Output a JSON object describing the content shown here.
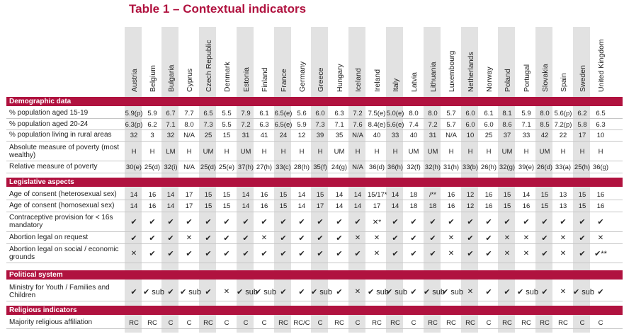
{
  "title": "Table 1 – Contextual indicators",
  "countries": [
    "Austria",
    "Belgium",
    "Bulgaria",
    "Cyprus",
    "Czech Republic",
    "Denmark",
    "Estonia",
    "Finland",
    "France",
    "Germany",
    "Greece",
    "Hungary",
    "Iceland",
    "Ireland",
    "Italy",
    "Latvia",
    "Lithuania",
    "Luxembourg",
    "Netherlands",
    "Norway",
    "Poland",
    "Portugal",
    "Slovakia",
    "Spain",
    "Sweden",
    "United Kingdom"
  ],
  "sections": [
    {
      "title": "Demographic data",
      "rows": [
        {
          "label": "% population aged 15-19",
          "values": [
            "5.9(p)",
            "5.9",
            "6.7",
            "7.7",
            "6.5",
            "5.5",
            "7.9",
            "6.1",
            "6.5(e)",
            "5.6",
            "6.0",
            "6.3",
            "7.2",
            "7.5(e)",
            "5.0(e)",
            "8.0",
            "8.0",
            "5.7",
            "6.0",
            "6.1",
            "8.1",
            "5.9",
            "8.0",
            "5.6(p)",
            "6.2",
            "6.5"
          ]
        },
        {
          "label": "% population aged 20-24",
          "values": [
            "6.3(p)",
            "6.2",
            "7.1",
            "8.0",
            "7.3",
            "5.5",
            "7.2",
            "6.3",
            "6.5(e)",
            "5.9",
            "7.3",
            "7.1",
            "7.6",
            "8.4(e)",
            "5.6(e)",
            "7.4",
            "7.2",
            "5.7",
            "6.0",
            "6.0",
            "8.6",
            "7.1",
            "8.5",
            "7.2(p)",
            "5.8",
            "6.3"
          ]
        },
        {
          "label": "% population living in rural areas",
          "values": [
            "32",
            "3",
            "32",
            "N/A",
            "25",
            "15",
            "31",
            "41",
            "24",
            "12",
            "39",
            "35",
            "N/A",
            "40",
            "33",
            "40",
            "31",
            "N/A",
            "10",
            "25",
            "37",
            "33",
            "42",
            "22",
            "17",
            "10"
          ]
        },
        {
          "label": "Absolute measure of poverty (most wealthy)",
          "values": [
            "H",
            "H",
            "LM",
            "H",
            "UM",
            "H",
            "UM",
            "H",
            "H",
            "H",
            "H",
            "UM",
            "H",
            "H",
            "H",
            "UM",
            "UM",
            "H",
            "H",
            "H",
            "UM",
            "H",
            "UM",
            "H",
            "H",
            "H"
          ]
        },
        {
          "label": "Relative measure of poverty",
          "values": [
            "30(e)",
            "25(d)",
            "32(i)",
            "N/A",
            "25(d)",
            "25(e)",
            "37(h)",
            "27(h)",
            "33(c)",
            "28(h)",
            "35(f)",
            "24(g)",
            "N/A",
            "36(d)",
            "36(h)",
            "32(f)",
            "32(h)",
            "31(h)",
            "33(b)",
            "26(h)",
            "32(g)",
            "39(e)",
            "26(d)",
            "33(a)",
            "25(h)",
            "36(g)"
          ]
        }
      ]
    },
    {
      "title": "Legislative aspects",
      "rows": [
        {
          "label": "Age of consent (heterosexual sex)",
          "values": [
            "14",
            "16",
            "14",
            "17",
            "15",
            "15",
            "14",
            "16",
            "15",
            "14",
            "15",
            "14",
            "14",
            "15/17*",
            "14",
            "18",
            "/**",
            "16",
            "12",
            "16",
            "15",
            "14",
            "15",
            "13",
            "15",
            "16"
          ]
        },
        {
          "label": "Age of consent (homosexual sex)",
          "values": [
            "14",
            "16",
            "14",
            "17",
            "15",
            "15",
            "14",
            "16",
            "15",
            "14",
            "17",
            "14",
            "14",
            "17",
            "14",
            "18",
            "18",
            "16",
            "12",
            "16",
            "15",
            "16",
            "15",
            "13",
            "15",
            "16"
          ]
        },
        {
          "label": "Contraceptive provision for < 16s mandatory",
          "values": [
            "✔",
            "✔",
            "✔",
            "✔",
            "✔",
            "✔",
            "✔",
            "✔",
            "✔",
            "✔",
            "✔",
            "✔",
            "✔",
            "✕*",
            "✔",
            "✔",
            "✔",
            "✔",
            "✔",
            "✔",
            "✔",
            "✔",
            "✔",
            "✔",
            "✔",
            "✔"
          ]
        },
        {
          "label": "Abortion legal on request",
          "values": [
            "✔",
            "✔",
            "✔",
            "✕",
            "✔",
            "✔",
            "✔",
            "✕",
            "✔",
            "✔",
            "✔",
            "✔",
            "✕",
            "✕",
            "✔",
            "✔",
            "✔",
            "✕",
            "✔",
            "✔",
            "✕",
            "✕",
            "✔",
            "✕",
            "✔",
            "✕"
          ]
        },
        {
          "label": "Abortion legal on social / economic grounds",
          "values": [
            "✕",
            "✔",
            "✔",
            "✔",
            "✔",
            "✔",
            "✔",
            "✔",
            "✔",
            "✔",
            "✔",
            "✔",
            "✔",
            "✕",
            "✔",
            "✔",
            "✔",
            "✕",
            "✔",
            "✔",
            "✕",
            "✕",
            "✔",
            "✕",
            "✔",
            "✔**"
          ]
        }
      ]
    },
    {
      "title": "Political system",
      "rows": [
        {
          "label": "Ministry for Youth / Families and Children",
          "values": [
            "✔",
            "✔ sub",
            "✔",
            "✔ sub",
            "✔",
            "✕",
            "✔ sub",
            "✔ sub",
            "✔",
            "✔",
            "✔ sub",
            "✔",
            "✕",
            "✔ sub",
            "✔ sub",
            "✔",
            "✔ sub",
            "✔ sub",
            "✕",
            "✔",
            "✔",
            "✔ sub",
            "✔",
            "✕",
            "✔ sub",
            "✔"
          ]
        }
      ]
    },
    {
      "title": "Religious indicators",
      "rows": [
        {
          "label": "Majority religious affiliation",
          "values": [
            "RC",
            "RC",
            "C",
            "C",
            "RC",
            "C",
            "C",
            "C",
            "RC",
            "RC/C",
            "C",
            "RC",
            "C",
            "RC",
            "RC",
            "C",
            "RC",
            "RC",
            "RC",
            "C",
            "RC",
            "RC",
            "RC",
            "RC",
            "C",
            "C"
          ]
        }
      ]
    }
  ],
  "colors": {
    "accent": "#b0123f",
    "shade": "#e2e2e2"
  }
}
